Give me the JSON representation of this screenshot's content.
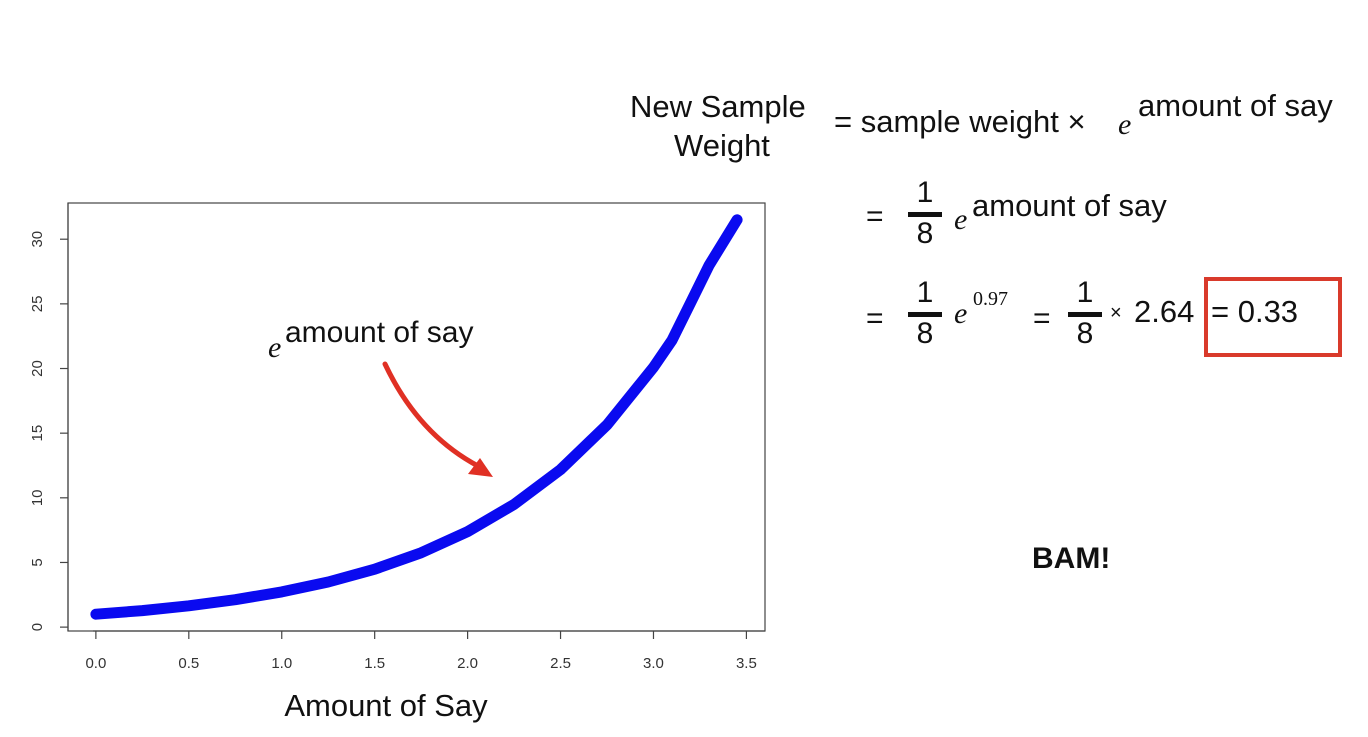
{
  "chart_data": {
    "type": "line",
    "title": "",
    "xlabel": "Amount of Say",
    "ylabel": "",
    "xlim": [
      -0.15,
      3.6
    ],
    "ylim": [
      -0.3,
      32.8
    ],
    "xticks": [
      0.0,
      0.5,
      1.0,
      1.5,
      2.0,
      2.5,
      3.0,
      3.5
    ],
    "xtick_labels": [
      "0.0",
      "0.5",
      "1.0",
      "1.5",
      "2.0",
      "2.5",
      "3.0",
      "3.5"
    ],
    "yticks": [
      0,
      5,
      10,
      15,
      20,
      25,
      30
    ],
    "ytick_labels": [
      "0",
      "5",
      "10",
      "15",
      "20",
      "25",
      "30"
    ],
    "grid": false,
    "series": [
      {
        "color": "#0a0af0",
        "x": [
          0.0,
          0.25,
          0.5,
          0.75,
          1.0,
          1.25,
          1.5,
          1.75,
          2.0,
          2.25,
          2.5,
          2.75,
          3.0,
          3.1,
          3.2,
          3.3,
          3.45
        ],
        "y": [
          1.0,
          1.28,
          1.65,
          2.12,
          2.72,
          3.49,
          4.48,
          5.75,
          7.39,
          9.49,
          12.18,
          15.64,
          20.09,
          22.2,
          25.1,
          28.0,
          31.5
        ]
      }
    ],
    "annotation": {
      "base": "e",
      "exponent": "amount of say",
      "arrow_color": "#e03024"
    }
  },
  "formula": {
    "lhs_line1": "New Sample",
    "lhs_line2": "Weight",
    "rhs": "= sample weight ×",
    "e": "e",
    "exponent": "amount of say",
    "line2": {
      "equals": "=",
      "numerator": "1",
      "denominator": "8",
      "e": "e",
      "exponent": "amount of say"
    },
    "line3": {
      "equals": "=",
      "numerator": "1",
      "denominator": "8",
      "e": "e",
      "exponent": "0.97",
      "equals2": "=",
      "numerator2": "1",
      "denominator2": "8",
      "times": "×",
      "value": "2.64",
      "result": "= 0.33",
      "box_color": "#d93a2b"
    }
  },
  "bam": "BAM!"
}
